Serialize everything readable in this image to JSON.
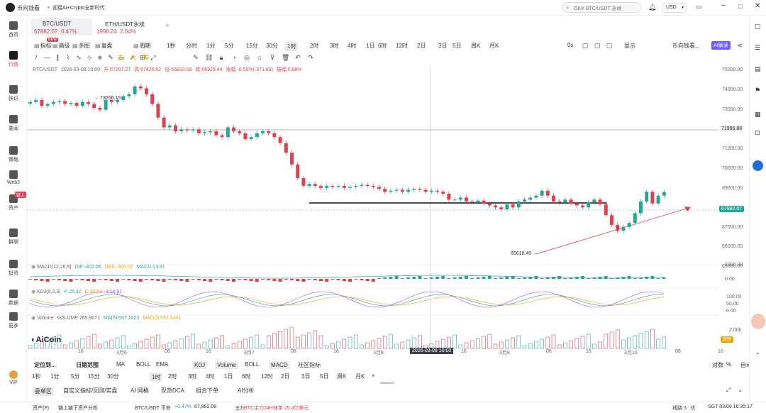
{
  "app": {
    "name": "币向钱看",
    "news": "迎接AI+Crypto全新时代",
    "search_placeholder": "OKX BTC/USDT 永续",
    "currency": "USD"
  },
  "sidebar": [
    {
      "label": "首页",
      "icon": "home-icon"
    },
    {
      "label": "行情",
      "icon": "market-icon"
    },
    {
      "label": "快讯",
      "icon": "news-icon"
    },
    {
      "label": "要闻",
      "icon": "headline-icon"
    },
    {
      "label": "策略",
      "icon": "strategy-icon"
    },
    {
      "label": "Web3",
      "icon": "web3-icon"
    },
    {
      "label": "资产",
      "icon": "asset-icon",
      "badge": "链上"
    },
    {
      "label": "群聊",
      "icon": "chat-icon"
    },
    {
      "label": "投资",
      "icon": "invest-icon"
    },
    {
      "label": "数据",
      "icon": "data-icon"
    },
    {
      "label": "更多",
      "icon": "more-icon"
    },
    {
      "label": "VIP",
      "icon": "vip-icon"
    }
  ],
  "tickers": [
    {
      "symbol": "BTC/USDT",
      "price": "67882.07",
      "change": "0.47%"
    },
    {
      "symbol": "ETH/USDT永续",
      "price": "1998.24",
      "change": "2.04%"
    }
  ],
  "add_tab": "+",
  "toolbar": {
    "items": [
      "指标",
      "高级",
      "多图",
      "复盘",
      "周期"
    ],
    "new_badge": "NEW",
    "timeframes": [
      "1秒",
      "分时",
      "1分",
      "5分",
      "15分",
      "30分",
      "1时",
      "2时",
      "3时",
      "4时",
      "1日",
      "6时",
      "12时",
      "2日",
      "3日",
      "5日",
      "周K",
      "月K"
    ],
    "selected": "1时",
    "right": [
      "0s",
      "显示",
      "币向钱看...",
      "AI解读"
    ]
  },
  "draw_tools": [
    "主",
    "大",
    "筹"
  ],
  "chart_info": {
    "symbol": "BTC/USDT",
    "date": "2026-03-08 10:00",
    "open": "开 67297.27",
    "high": "高 67426.52",
    "low": "低 66833.58",
    "close": "收 66925.44",
    "change": "涨幅 -0.55%(-371.83)",
    "amp": "振幅 0.88%"
  },
  "price_axis": [
    "75000.00",
    "74000.00",
    "73000.00",
    "71000.00",
    "70000.00",
    "69000.00",
    "67000.00",
    "66000.00",
    "65000.00"
  ],
  "hline_label": "71996.88",
  "price_label": "67882.07",
  "annotations": {
    "high": "73558.15",
    "low": "65618.49"
  },
  "macd": {
    "title": "MACD(12,26,9)",
    "dif": "DIF:-402.06",
    "dea": "DEA:-409.02",
    "macd": "MACD:13.91",
    "axis": [
      "2000.00",
      "0.00"
    ]
  },
  "kdj": {
    "title": "KDJ(9,3,3)",
    "k": "K:25.32",
    "d": "D:30.53",
    "j": "J:14.91",
    "axis": [
      "100.00",
      "50.00",
      "0.00"
    ]
  },
  "volume": {
    "title": "Volume",
    "vol": "VOLUME:765.9071",
    "ma5": "MA(5):597.1623",
    "ma10": "MA(10):692.5441",
    "axis": [
      "2.00k",
      "809"
    ]
  },
  "x_axis": [
    "16",
    "3月6",
    "08",
    "16",
    "3月7",
    "08",
    "16",
    "3月8",
    "16",
    "3月9",
    "08",
    "16",
    "3月10",
    "08",
    "16"
  ],
  "crosshair_time": "2026-03-08 10:00",
  "logo": "AiCoin",
  "bottom_left": [
    "定位到...",
    "日期范围"
  ],
  "indicators": [
    "MA",
    "BOLL",
    "EMA",
    "KDJ",
    "Volume",
    "BOLL",
    "MACD",
    "社区指标"
  ],
  "axis_opts": [
    "对数",
    "%",
    "自动"
  ],
  "bottom_timeframes": [
    "1秒",
    "1分",
    "5分",
    "15分",
    "30分",
    "1时",
    "2时",
    "3时",
    "4时",
    "1日",
    "6时",
    "12时",
    "2日",
    "3日",
    "5日",
    "周K",
    "月K",
    "×"
  ],
  "bottom_tabs": [
    "委单区",
    "自定义指标/回测/实盘",
    "AI 网格",
    "现货DCA",
    "组合下单",
    "AI分析"
  ],
  "status": {
    "left": [
      "资产(F)",
      "链上链下资产分析"
    ],
    "pair": "BTC/USDT 币安",
    "change": "+0.47%",
    "price": "67,882.08",
    "main_label": "主力",
    "main_text": "BTC主力24H抹单 25.4亿美元",
    "line": "线路 3 : 优",
    "time": "SGT 03/09 16:35:17"
  },
  "colors": {
    "up": "#26a69a",
    "down": "#e0414a",
    "accent": "#6a5cff"
  }
}
